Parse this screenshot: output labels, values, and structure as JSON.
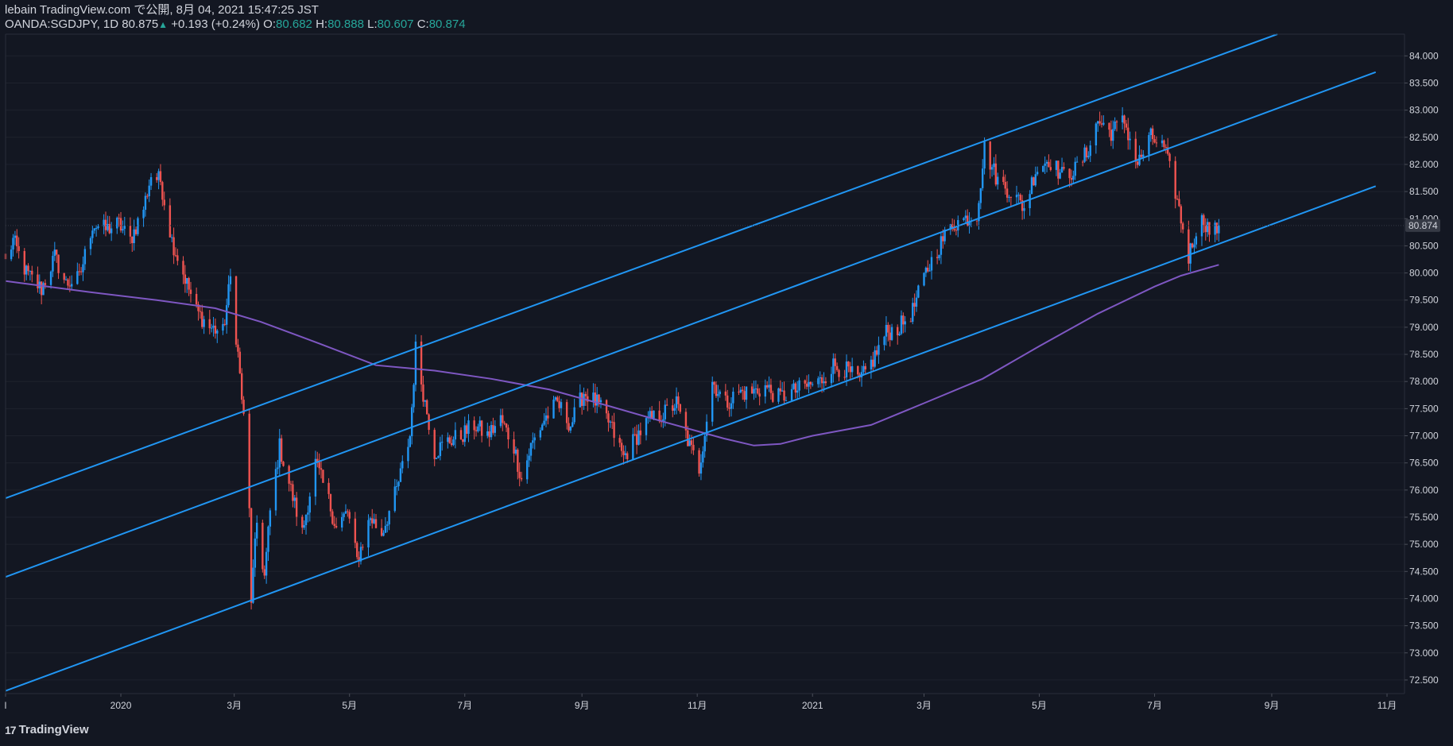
{
  "header": {
    "line1": "lebain TradingView.com で公開, 8月 04, 2021 15:47:25 JST",
    "symbol": "OANDA:SGDJPY, 1D",
    "last": "80.875",
    "change_arrow": "▲",
    "change": "+0.193 (+0.24%)",
    "o_label": "O:",
    "o": "80.682",
    "h_label": "H:",
    "h": "80.888",
    "l_label": "L:",
    "l": "80.607",
    "c_label": "C:",
    "c": "80.874"
  },
  "footer": {
    "logo": "17",
    "brand": "TradingView"
  },
  "colors": {
    "background": "#131722",
    "up": "#2196f3",
    "down": "#ef5350",
    "channel": "#2196f3",
    "ma": "#7e57c2",
    "grid": "#1e222d",
    "text": "#d1d4dc",
    "price_label_bg": "#363a45"
  },
  "chart_data": {
    "type": "candlestick",
    "symbol": "OANDA:SGDJPY",
    "interval": "1D",
    "ylim": [
      72.25,
      84.4
    ],
    "y_ticks": [
      "72.500",
      "73.000",
      "73.500",
      "74.000",
      "74.500",
      "75.000",
      "75.500",
      "76.000",
      "76.500",
      "77.000",
      "77.500",
      "78.000",
      "78.500",
      "79.000",
      "79.500",
      "80.000",
      "80.500",
      "81.000",
      "81.500",
      "82.000",
      "82.500",
      "83.000",
      "83.500",
      "84.000"
    ],
    "x_ticks": [
      {
        "date": "2019-11-01",
        "label": "l"
      },
      {
        "date": "2020-01-01",
        "label": "2020"
      },
      {
        "date": "2020-03-01",
        "label": "3月"
      },
      {
        "date": "2020-05-01",
        "label": "5月"
      },
      {
        "date": "2020-07-01",
        "label": "7月"
      },
      {
        "date": "2020-09-01",
        "label": "9月"
      },
      {
        "date": "2020-11-01",
        "label": "11月"
      },
      {
        "date": "2021-01-01",
        "label": "2021"
      },
      {
        "date": "2021-03-01",
        "label": "3月"
      },
      {
        "date": "2021-05-01",
        "label": "5月"
      },
      {
        "date": "2021-07-01",
        "label": "7月"
      },
      {
        "date": "2021-09-01",
        "label": "9月"
      },
      {
        "date": "2021-11-01",
        "label": "11月"
      }
    ],
    "last_price_label": "80.874",
    "last_price": 80.874,
    "price_path": [
      {
        "date": "2019-11-01",
        "v": 80.2
      },
      {
        "date": "2019-11-05",
        "v": 80.6
      },
      {
        "date": "2019-11-12",
        "v": 80.0
      },
      {
        "date": "2019-11-20",
        "v": 79.7
      },
      {
        "date": "2019-11-27",
        "v": 80.3
      },
      {
        "date": "2019-12-03",
        "v": 79.8
      },
      {
        "date": "2019-12-10",
        "v": 79.9
      },
      {
        "date": "2019-12-17",
        "v": 80.9
      },
      {
        "date": "2019-12-24",
        "v": 80.8
      },
      {
        "date": "2019-12-31",
        "v": 80.9
      },
      {
        "date": "2020-01-06",
        "v": 80.6
      },
      {
        "date": "2020-01-13",
        "v": 81.2
      },
      {
        "date": "2020-01-17",
        "v": 81.8
      },
      {
        "date": "2020-01-22",
        "v": 81.7
      },
      {
        "date": "2020-01-28",
        "v": 80.6
      },
      {
        "date": "2020-02-03",
        "v": 80.0
      },
      {
        "date": "2020-02-10",
        "v": 79.3
      },
      {
        "date": "2020-02-17",
        "v": 79.0
      },
      {
        "date": "2020-02-24",
        "v": 78.9
      },
      {
        "date": "2020-02-28",
        "v": 79.9
      },
      {
        "date": "2020-03-03",
        "v": 78.5
      },
      {
        "date": "2020-03-06",
        "v": 77.3
      },
      {
        "date": "2020-03-09",
        "v": 75.6
      },
      {
        "date": "2020-03-10",
        "v": 74.0
      },
      {
        "date": "2020-03-13",
        "v": 75.4
      },
      {
        "date": "2020-03-17",
        "v": 74.4
      },
      {
        "date": "2020-03-20",
        "v": 75.6
      },
      {
        "date": "2020-03-25",
        "v": 76.8
      },
      {
        "date": "2020-03-31",
        "v": 76.0
      },
      {
        "date": "2020-04-06",
        "v": 75.2
      },
      {
        "date": "2020-04-13",
        "v": 76.5
      },
      {
        "date": "2020-04-20",
        "v": 75.8
      },
      {
        "date": "2020-04-24",
        "v": 75.3
      },
      {
        "date": "2020-04-30",
        "v": 75.6
      },
      {
        "date": "2020-05-05",
        "v": 74.7
      },
      {
        "date": "2020-05-12",
        "v": 75.5
      },
      {
        "date": "2020-05-18",
        "v": 75.2
      },
      {
        "date": "2020-05-26",
        "v": 76.0
      },
      {
        "date": "2020-06-02",
        "v": 77.0
      },
      {
        "date": "2020-06-05",
        "v": 78.6
      },
      {
        "date": "2020-06-09",
        "v": 77.8
      },
      {
        "date": "2020-06-15",
        "v": 76.7
      },
      {
        "date": "2020-06-22",
        "v": 76.9
      },
      {
        "date": "2020-06-29",
        "v": 77.0
      },
      {
        "date": "2020-07-06",
        "v": 77.2
      },
      {
        "date": "2020-07-13",
        "v": 77.0
      },
      {
        "date": "2020-07-20",
        "v": 77.3
      },
      {
        "date": "2020-07-27",
        "v": 76.8
      },
      {
        "date": "2020-07-31",
        "v": 76.2
      },
      {
        "date": "2020-08-05",
        "v": 76.8
      },
      {
        "date": "2020-08-12",
        "v": 77.3
      },
      {
        "date": "2020-08-19",
        "v": 77.6
      },
      {
        "date": "2020-08-26",
        "v": 77.2
      },
      {
        "date": "2020-09-02",
        "v": 77.8
      },
      {
        "date": "2020-09-09",
        "v": 77.6
      },
      {
        "date": "2020-09-16",
        "v": 77.2
      },
      {
        "date": "2020-09-23",
        "v": 76.6
      },
      {
        "date": "2020-09-30",
        "v": 77.0
      },
      {
        "date": "2020-10-07",
        "v": 77.3
      },
      {
        "date": "2020-10-14",
        "v": 77.4
      },
      {
        "date": "2020-10-21",
        "v": 77.6
      },
      {
        "date": "2020-10-28",
        "v": 76.8
      },
      {
        "date": "2020-11-02",
        "v": 76.4
      },
      {
        "date": "2020-11-09",
        "v": 78.0
      },
      {
        "date": "2020-11-16",
        "v": 77.6
      },
      {
        "date": "2020-11-23",
        "v": 77.8
      },
      {
        "date": "2020-11-30",
        "v": 77.8
      },
      {
        "date": "2020-12-07",
        "v": 77.9
      },
      {
        "date": "2020-12-14",
        "v": 77.7
      },
      {
        "date": "2020-12-21",
        "v": 77.8
      },
      {
        "date": "2020-12-28",
        "v": 77.9
      },
      {
        "date": "2021-01-05",
        "v": 78.0
      },
      {
        "date": "2021-01-12",
        "v": 78.3
      },
      {
        "date": "2021-01-19",
        "v": 78.2
      },
      {
        "date": "2021-01-26",
        "v": 78.0
      },
      {
        "date": "2021-02-02",
        "v": 78.4
      },
      {
        "date": "2021-02-09",
        "v": 78.9
      },
      {
        "date": "2021-02-16",
        "v": 79.0
      },
      {
        "date": "2021-02-23",
        "v": 79.3
      },
      {
        "date": "2021-03-02",
        "v": 80.0
      },
      {
        "date": "2021-03-09",
        "v": 80.5
      },
      {
        "date": "2021-03-16",
        "v": 80.9
      },
      {
        "date": "2021-03-23",
        "v": 81.0
      },
      {
        "date": "2021-03-29",
        "v": 81.1
      },
      {
        "date": "2021-04-02",
        "v": 82.3
      },
      {
        "date": "2021-04-09",
        "v": 81.7
      },
      {
        "date": "2021-04-16",
        "v": 81.5
      },
      {
        "date": "2021-04-23",
        "v": 81.2
      },
      {
        "date": "2021-04-29",
        "v": 81.9
      },
      {
        "date": "2021-05-06",
        "v": 82.1
      },
      {
        "date": "2021-05-13",
        "v": 81.8
      },
      {
        "date": "2021-05-20",
        "v": 81.9
      },
      {
        "date": "2021-05-26",
        "v": 82.2
      },
      {
        "date": "2021-06-01",
        "v": 82.8
      },
      {
        "date": "2021-06-08",
        "v": 82.6
      },
      {
        "date": "2021-06-15",
        "v": 82.8
      },
      {
        "date": "2021-06-22",
        "v": 82.0
      },
      {
        "date": "2021-06-29",
        "v": 82.5
      },
      {
        "date": "2021-07-06",
        "v": 82.3
      },
      {
        "date": "2021-07-12",
        "v": 81.5
      },
      {
        "date": "2021-07-19",
        "v": 80.3
      },
      {
        "date": "2021-07-23",
        "v": 80.8
      },
      {
        "date": "2021-07-27",
        "v": 81.0
      },
      {
        "date": "2021-07-31",
        "v": 80.7
      },
      {
        "date": "2021-08-04",
        "v": 80.874
      }
    ],
    "moving_average": [
      {
        "date": "2019-11-01",
        "v": 79.85
      },
      {
        "date": "2019-12-15",
        "v": 79.65
      },
      {
        "date": "2020-01-20",
        "v": 79.5
      },
      {
        "date": "2020-02-20",
        "v": 79.35
      },
      {
        "date": "2020-03-15",
        "v": 79.1
      },
      {
        "date": "2020-04-15",
        "v": 78.7
      },
      {
        "date": "2020-05-15",
        "v": 78.3
      },
      {
        "date": "2020-06-15",
        "v": 78.2
      },
      {
        "date": "2020-07-15",
        "v": 78.05
      },
      {
        "date": "2020-08-15",
        "v": 77.85
      },
      {
        "date": "2020-09-15",
        "v": 77.55
      },
      {
        "date": "2020-10-15",
        "v": 77.25
      },
      {
        "date": "2020-11-15",
        "v": 76.95
      },
      {
        "date": "2020-12-01",
        "v": 76.82
      },
      {
        "date": "2020-12-15",
        "v": 76.85
      },
      {
        "date": "2021-01-01",
        "v": 77.0
      },
      {
        "date": "2021-02-01",
        "v": 77.2
      },
      {
        "date": "2021-03-01",
        "v": 77.6
      },
      {
        "date": "2021-04-01",
        "v": 78.05
      },
      {
        "date": "2021-05-01",
        "v": 78.65
      },
      {
        "date": "2021-06-01",
        "v": 79.25
      },
      {
        "date": "2021-07-01",
        "v": 79.75
      },
      {
        "date": "2021-07-15",
        "v": 79.95
      },
      {
        "date": "2021-08-04",
        "v": 80.15
      }
    ],
    "channel_lines": [
      {
        "name": "upper",
        "start": {
          "date": "2019-11-01",
          "v": 75.85
        },
        "end": {
          "date": "2021-09-04",
          "v": 84.4
        }
      },
      {
        "name": "middle",
        "start": {
          "date": "2019-11-01",
          "v": 74.4
        },
        "end": {
          "date": "2021-10-26",
          "v": 83.7
        }
      },
      {
        "name": "lower",
        "start": {
          "date": "2019-11-01",
          "v": 72.3
        },
        "end": {
          "date": "2021-10-26",
          "v": 81.6
        }
      }
    ]
  }
}
